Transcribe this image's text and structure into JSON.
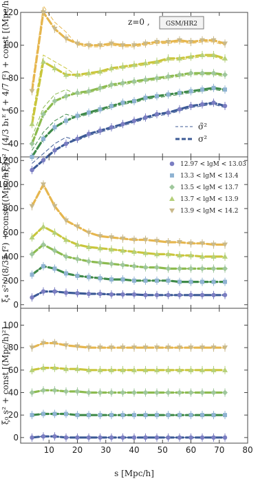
{
  "chart_data": [
    {
      "type": "line",
      "panel": "top",
      "header": {
        "prefix": "z=0 ,",
        "box": "GSM/HR2"
      },
      "ylabel": "−ξ₂ s² / (4/3 b₁ᴱ f + 4/7 f²) + const  [(Mpc/h)²]",
      "ylim": [
        32,
        120
      ],
      "yticks": [
        40,
        60,
        80,
        100,
        120
      ],
      "xlim": [
        0,
        80
      ],
      "line_legend": [
        {
          "label": "σ̃²",
          "style": "dashed-thin"
        },
        {
          "label": "σ²",
          "style": "dashed-thick"
        }
      ],
      "series": [
        {
          "offset": 100,
          "values": [
            72,
            120,
            110,
            104,
            101,
            100,
            100,
            101,
            100,
            100,
            101,
            102,
            102,
            103,
            102,
            103,
            103,
            101
          ]
        },
        {
          "offset": 80,
          "values": [
            52,
            90,
            86,
            82,
            82,
            83,
            84,
            86,
            87,
            88,
            89,
            90,
            92,
            92,
            93,
            94,
            94,
            92
          ]
        },
        {
          "offset": 60,
          "values": [
            40,
            58,
            66,
            69,
            71,
            72,
            74,
            76,
            77,
            78,
            79,
            80,
            81,
            82,
            83,
            83,
            83,
            82
          ]
        },
        {
          "offset": 40,
          "values": [
            32,
            43,
            50,
            54,
            57,
            59,
            61,
            63,
            65,
            66,
            68,
            69,
            70,
            71,
            72,
            73,
            74,
            73
          ]
        },
        {
          "offset": 20,
          "values": [
            24,
            30,
            36,
            40,
            43,
            46,
            48,
            50,
            52,
            54,
            56,
            58,
            59,
            61,
            63,
            64,
            65,
            63
          ]
        }
      ]
    },
    {
      "type": "line",
      "panel": "middle",
      "ylabel": "ξ₄ s² / (8/35 f²) + const  [(Mpc/h)²]",
      "ylim": [
        -30,
        1230
      ],
      "yticks": [
        0,
        200,
        400,
        600,
        800,
        1000,
        1200
      ],
      "xlim": [
        0,
        80
      ],
      "mass_legend": [
        {
          "label": "12.97 < lgM < 13.03",
          "marker": "circle",
          "color": "#7b7ec2"
        },
        {
          "label": "13.3 < lgM < 13.4",
          "marker": "square",
          "color": "#8fb3d2"
        },
        {
          "label": "13.5 < lgM < 13.7",
          "marker": "diamond",
          "color": "#9fc79c"
        },
        {
          "label": "13.7 < lgM < 13.9",
          "marker": "triangle-up",
          "color": "#b5d07a"
        },
        {
          "label": "13.9 < lgM < 14.2",
          "marker": "triangle-down",
          "color": "#c9b98a"
        }
      ],
      "series": [
        {
          "offset": 480,
          "values": [
            820,
            1000,
            820,
            700,
            650,
            600,
            570,
            560,
            550,
            540,
            540,
            530,
            520,
            520,
            510,
            510,
            500,
            500
          ]
        },
        {
          "offset": 380,
          "values": [
            560,
            650,
            600,
            540,
            500,
            480,
            470,
            460,
            450,
            440,
            430,
            420,
            420,
            410,
            410,
            400,
            400,
            400
          ]
        },
        {
          "offset": 280,
          "values": [
            420,
            500,
            450,
            400,
            380,
            360,
            350,
            340,
            330,
            320,
            310,
            310,
            300,
            300,
            300,
            300,
            300,
            300
          ]
        },
        {
          "offset": 180,
          "values": [
            250,
            320,
            300,
            260,
            240,
            230,
            220,
            210,
            210,
            200,
            200,
            200,
            200,
            190,
            190,
            190,
            190,
            190
          ]
        },
        {
          "offset": 80,
          "values": [
            60,
            110,
            110,
            100,
            95,
            90,
            90,
            85,
            85,
            85,
            80,
            80,
            80,
            80,
            80,
            80,
            80,
            80
          ]
        }
      ]
    },
    {
      "type": "line",
      "panel": "bottom",
      "ylabel": "ξ₀ s² + const  [(Mpc/h)²]",
      "xlabel": "s  [Mpc/h]",
      "ylim": [
        -5,
        115
      ],
      "yticks": [
        0,
        20,
        40,
        60,
        80,
        100
      ],
      "xlim": [
        0,
        80
      ],
      "xticks": [
        10,
        20,
        30,
        40,
        50,
        60,
        70,
        80
      ],
      "series": [
        {
          "offset": 80,
          "values": [
            80,
            84,
            84,
            82,
            81,
            80,
            80,
            80,
            80,
            80,
            80,
            80,
            80,
            80,
            80,
            80,
            80,
            80
          ]
        },
        {
          "offset": 60,
          "values": [
            60,
            62,
            62,
            61,
            61,
            60,
            60,
            60,
            60,
            60,
            60,
            60,
            60,
            60,
            60,
            60,
            60,
            60
          ]
        },
        {
          "offset": 40,
          "values": [
            40,
            42,
            42,
            41,
            41,
            40,
            40,
            40,
            40,
            40,
            40,
            40,
            40,
            40,
            40,
            40,
            40,
            40
          ]
        },
        {
          "offset": 20,
          "values": [
            20,
            21,
            21,
            21,
            20,
            20,
            20,
            20,
            20,
            20,
            20,
            20,
            20,
            20,
            20,
            20,
            20,
            20
          ]
        },
        {
          "offset": 0,
          "values": [
            0,
            1,
            1,
            0,
            0,
            0,
            0,
            0,
            0,
            0,
            0,
            0,
            0,
            0,
            0,
            0,
            0,
            0
          ]
        }
      ]
    }
  ],
  "x_samples": [
    4,
    8,
    12,
    16,
    20,
    24,
    28,
    32,
    36,
    40,
    44,
    48,
    52,
    56,
    60,
    64,
    68,
    72
  ],
  "colors": [
    "#e6b64e",
    "#c9c63c",
    "#8cbb4f",
    "#3f8a4a",
    "#3c5a96"
  ],
  "marker_colors": [
    "#c9b98a",
    "#b5d07a",
    "#9fc79c",
    "#8fb3d2",
    "#7b7ec2"
  ]
}
